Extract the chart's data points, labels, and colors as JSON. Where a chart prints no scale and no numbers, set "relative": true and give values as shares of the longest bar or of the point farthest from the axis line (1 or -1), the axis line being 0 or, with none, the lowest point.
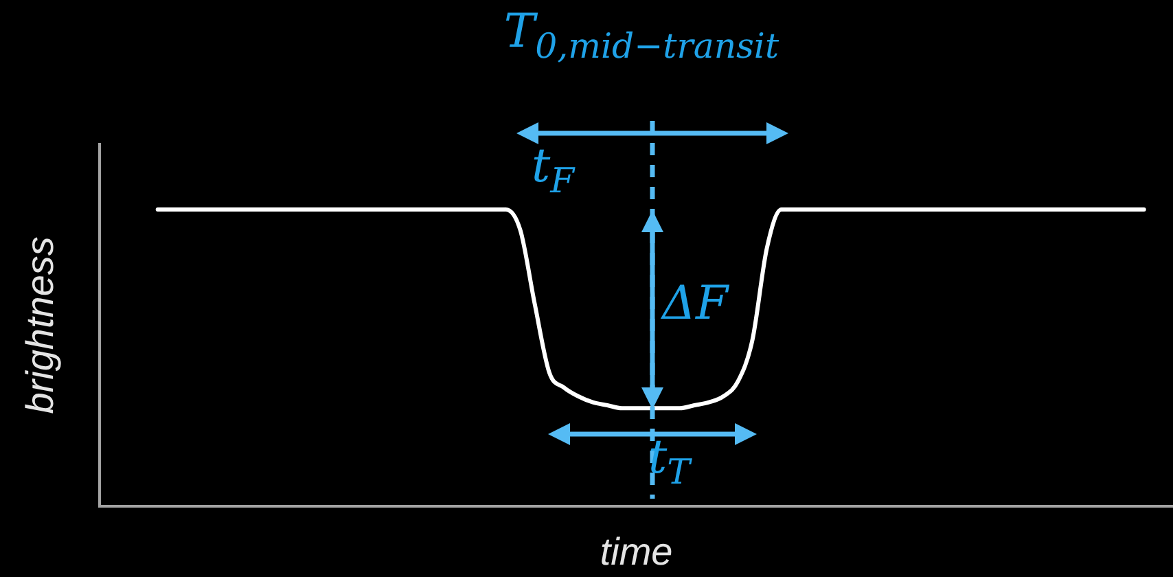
{
  "chart_data": {
    "type": "line",
    "relative": true,
    "xlabel": "time",
    "ylabel": "brightness",
    "annotations": [
      "T$_{0,mid−transit}$",
      "t$_{F}$",
      "ΔF",
      "t$_{T}$"
    ],
    "color": "#ffffff",
    "categories": [
      null,
      null,
      null,
      null,
      null,
      null,
      null,
      null,
      null,
      null,
      null,
      null,
      null,
      null,
      null,
      null,
      null,
      null,
      null,
      null,
      null,
      null,
      null,
      null,
      null,
      null,
      null,
      null,
      null,
      null,
      null,
      null,
      null,
      null,
      null,
      null,
      null,
      null,
      null,
      null,
      null,
      null,
      null,
      null,
      null,
      null,
      null,
      null,
      null,
      null,
      null,
      null,
      null,
      null,
      null,
      null,
      null,
      null,
      null,
      null,
      null,
      null,
      null,
      null,
      null,
      null,
      null,
      null,
      null,
      null,
      null,
      null,
      null,
      null,
      null
    ],
    "values": [
      null,
      null,
      null,
      null,
      1,
      1,
      1,
      1,
      1,
      1,
      1,
      1,
      1,
      1,
      1,
      1,
      1,
      1,
      1,
      1,
      1,
      1,
      1,
      1,
      1,
      1,
      1,
      1,
      1,
      0.93,
      0.68,
      0.45,
      0.4,
      0.37,
      0.35,
      0.34,
      0.33,
      0.33,
      0.33,
      0.33,
      0.33,
      0.34,
      0.35,
      0.37,
      0.42,
      0.56,
      0.87,
      1,
      1,
      1,
      1,
      1,
      1,
      1,
      1,
      1,
      1,
      1,
      1,
      1,
      1,
      1,
      1,
      1,
      1,
      1,
      1,
      1,
      1,
      1,
      1,
      1,
      1,
      null,
      null
    ]
  }
}
